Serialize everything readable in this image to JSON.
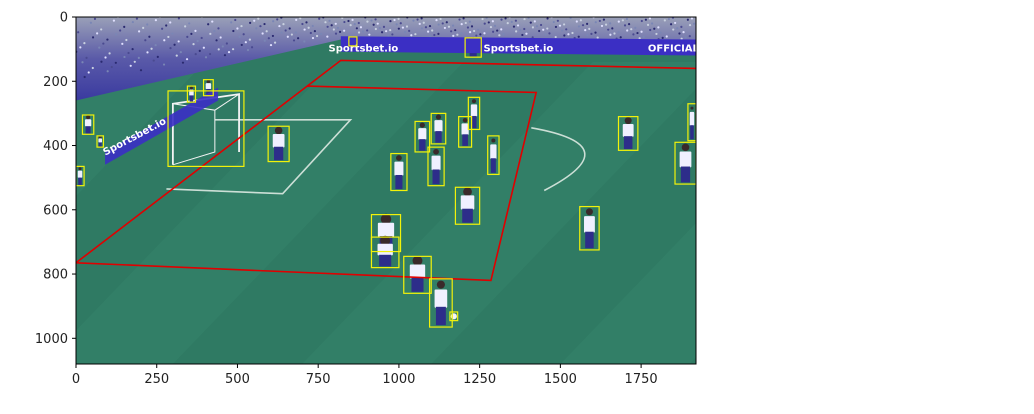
{
  "chart_data": {
    "type": "image-annotation",
    "title": "",
    "xlabel": "",
    "ylabel": "",
    "xlim": [
      0,
      1920
    ],
    "ylim": [
      1080,
      0
    ],
    "x_ticks": [
      0,
      250,
      500,
      750,
      1000,
      1250,
      1500,
      1750
    ],
    "y_ticks": [
      0,
      200,
      400,
      600,
      800,
      1000
    ],
    "x_tick_labels": [
      "0",
      "250",
      "500",
      "750",
      "1000",
      "1250",
      "1500",
      "1750"
    ],
    "y_tick_labels": [
      "0",
      "200",
      "400",
      "600",
      "800",
      "1000"
    ],
    "background": {
      "description": "Football pitch broadcast frame with stands, advertising boards and goal",
      "pitch_color": "#2f7a63",
      "stands_color": "#3f3fa0",
      "board_color": "#3b2fc4"
    },
    "ad_boards": [
      {
        "text": "Sportsbet.io",
        "x": 890,
        "y": 95
      },
      {
        "text": "Sportsbet.io",
        "x": 1370,
        "y": 95
      },
      {
        "text": "OFFICIAL",
        "x": 1850,
        "y": 95
      },
      {
        "text": "Sportsbet.io",
        "x": 180,
        "y": 370
      }
    ],
    "field_polygons": [
      {
        "name": "pitch-outline",
        "color": "#e00000",
        "points": [
          [
            0,
            765
          ],
          [
            820,
            135
          ],
          [
            1920,
            160
          ]
        ]
      },
      {
        "name": "penalty-area",
        "color": "#e00000",
        "points": [
          [
            715,
            215
          ],
          [
            1425,
            235
          ],
          [
            1285,
            820
          ],
          [
            0,
            765
          ]
        ]
      }
    ],
    "boxes": [
      {
        "label": "player",
        "x1": 845,
        "y1": 62,
        "x2": 870,
        "y2": 90
      },
      {
        "label": "player",
        "x1": 1205,
        "y1": 65,
        "x2": 1255,
        "y2": 125
      },
      {
        "label": "player",
        "x1": 345,
        "y1": 215,
        "x2": 370,
        "y2": 265
      },
      {
        "label": "player",
        "x1": 395,
        "y1": 195,
        "x2": 425,
        "y2": 245
      },
      {
        "label": "goal",
        "x1": 285,
        "y1": 230,
        "x2": 520,
        "y2": 465
      },
      {
        "label": "player",
        "x1": 595,
        "y1": 340,
        "x2": 660,
        "y2": 450
      },
      {
        "label": "player",
        "x1": 20,
        "y1": 305,
        "x2": 55,
        "y2": 365
      },
      {
        "label": "player",
        "x1": 65,
        "y1": 370,
        "x2": 85,
        "y2": 405
      },
      {
        "label": "player",
        "x1": 0,
        "y1": 465,
        "x2": 25,
        "y2": 525
      },
      {
        "label": "player",
        "x1": 1050,
        "y1": 325,
        "x2": 1095,
        "y2": 420
      },
      {
        "label": "player",
        "x1": 1100,
        "y1": 300,
        "x2": 1145,
        "y2": 395
      },
      {
        "label": "player",
        "x1": 1185,
        "y1": 310,
        "x2": 1225,
        "y2": 405
      },
      {
        "label": "player",
        "x1": 1215,
        "y1": 250,
        "x2": 1250,
        "y2": 350
      },
      {
        "label": "player",
        "x1": 1275,
        "y1": 370,
        "x2": 1310,
        "y2": 490
      },
      {
        "label": "player",
        "x1": 975,
        "y1": 425,
        "x2": 1025,
        "y2": 540
      },
      {
        "label": "player",
        "x1": 1090,
        "y1": 405,
        "x2": 1140,
        "y2": 525
      },
      {
        "label": "player",
        "x1": 1175,
        "y1": 530,
        "x2": 1250,
        "y2": 645
      },
      {
        "label": "player",
        "x1": 915,
        "y1": 615,
        "x2": 1005,
        "y2": 730
      },
      {
        "label": "player",
        "x1": 915,
        "y1": 685,
        "x2": 1000,
        "y2": 780
      },
      {
        "label": "player",
        "x1": 1015,
        "y1": 745,
        "x2": 1100,
        "y2": 860
      },
      {
        "label": "player",
        "x1": 1095,
        "y1": 815,
        "x2": 1165,
        "y2": 965
      },
      {
        "label": "ball",
        "x1": 1158,
        "y1": 918,
        "x2": 1182,
        "y2": 945
      },
      {
        "label": "player",
        "x1": 1560,
        "y1": 590,
        "x2": 1620,
        "y2": 725
      },
      {
        "label": "player",
        "x1": 1680,
        "y1": 310,
        "x2": 1740,
        "y2": 415
      },
      {
        "label": "player",
        "x1": 1855,
        "y1": 390,
        "x2": 1920,
        "y2": 520
      },
      {
        "label": "player",
        "x1": 1895,
        "y1": 270,
        "x2": 1920,
        "y2": 385
      }
    ]
  }
}
